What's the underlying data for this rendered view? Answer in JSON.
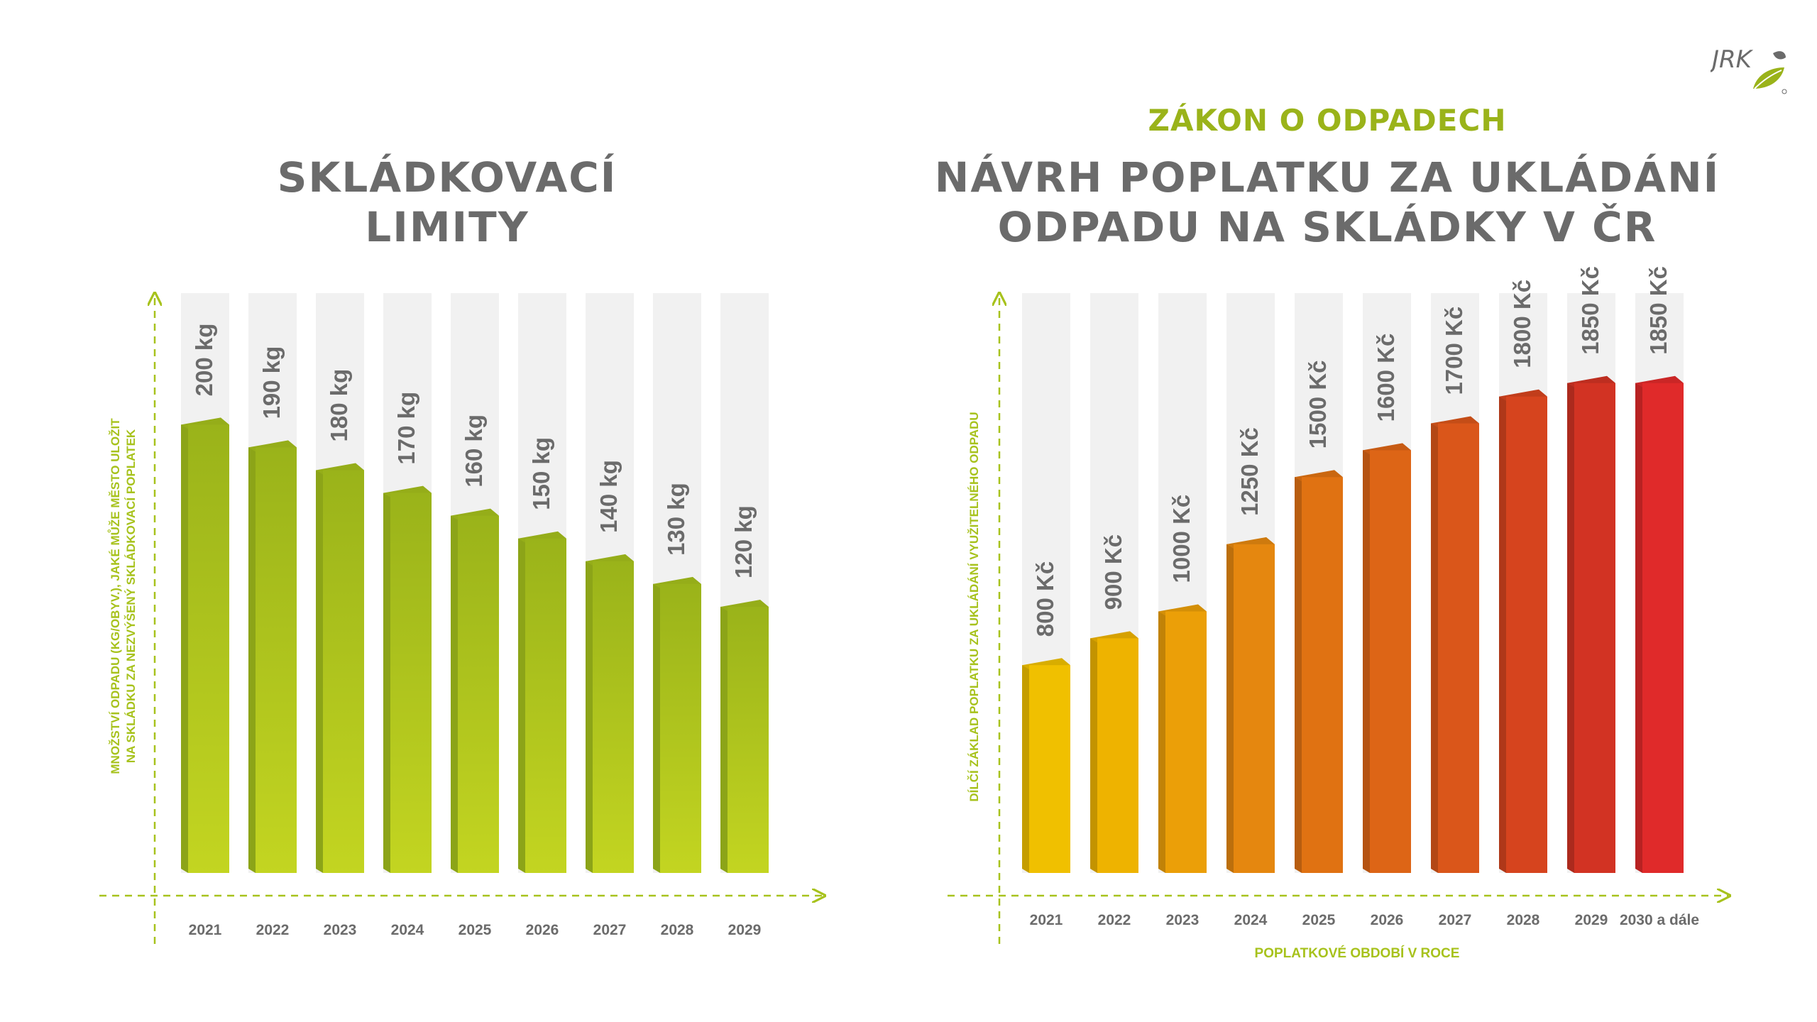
{
  "logo_text": "JRK",
  "left_title": [
    "SKLÁDKOVACÍ",
    "LIMITY"
  ],
  "right_subtitle": "ZÁKON O ODPADECH",
  "right_title": [
    "NÁVRH POPLATKU ZA UKLÁDÁNÍ",
    "ODPADU NA SKLÁDKY V ČR"
  ],
  "colors": {
    "green_top": "#9ab31a",
    "green_bottom": "#c3d521",
    "axis_green": "#a7c21c",
    "label_gray": "#6b6b6b",
    "track_gray": "#f1f1f1"
  },
  "chart_data": [
    {
      "type": "bar",
      "categories": [
        "2021",
        "2022",
        "2023",
        "2024",
        "2025",
        "2026",
        "2027",
        "2028",
        "2029"
      ],
      "values": [
        200,
        190,
        180,
        170,
        160,
        150,
        140,
        130,
        120
      ],
      "value_labels": [
        "200 kg",
        "190 kg",
        "180 kg",
        "170 kg",
        "160 kg",
        "150 kg",
        "140 kg",
        "130 kg",
        "120 kg"
      ],
      "ylabel": [
        "MNOŽSTVÍ ODPADU (KG/OBYV.), JAKÉ MŮŽE MĚSTO ULOŽIT",
        "NA SKLÁDKU ZA NEZVÝŠENÝ SKLÁDKOVACÍ POPLATEK"
      ],
      "xlabel": "",
      "ylim": [
        0,
        240
      ]
    },
    {
      "type": "bar",
      "categories": [
        "2021",
        "2022",
        "2023",
        "2024",
        "2025",
        "2026",
        "2027",
        "2028",
        "2029",
        "2030 a dále"
      ],
      "values": [
        800,
        900,
        1000,
        1250,
        1500,
        1600,
        1700,
        1800,
        1850,
        1850
      ],
      "value_labels": [
        "800 Kč",
        "900 Kč",
        "1000 Kč",
        "1250 Kč",
        "1500 Kč",
        "1600 Kč",
        "1700 Kč",
        "1800 Kč",
        "1850 Kč",
        "1850 Kč"
      ],
      "bar_colors": [
        "#f0c000",
        "#eeb300",
        "#eb9f08",
        "#e5870f",
        "#e07212",
        "#dd6516",
        "#da561a",
        "#d6441e",
        "#d23323",
        "#e02a2a"
      ],
      "ylabel": "DÍLČÍ ZÁKLAD POPLATKU ZA UKLÁDÁNÍ VYUŽITELNÉHO ODPADU",
      "xlabel": "POPLATKOVÉ OBDOBÍ V ROCE",
      "ylim": [
        0,
        2000
      ]
    }
  ]
}
